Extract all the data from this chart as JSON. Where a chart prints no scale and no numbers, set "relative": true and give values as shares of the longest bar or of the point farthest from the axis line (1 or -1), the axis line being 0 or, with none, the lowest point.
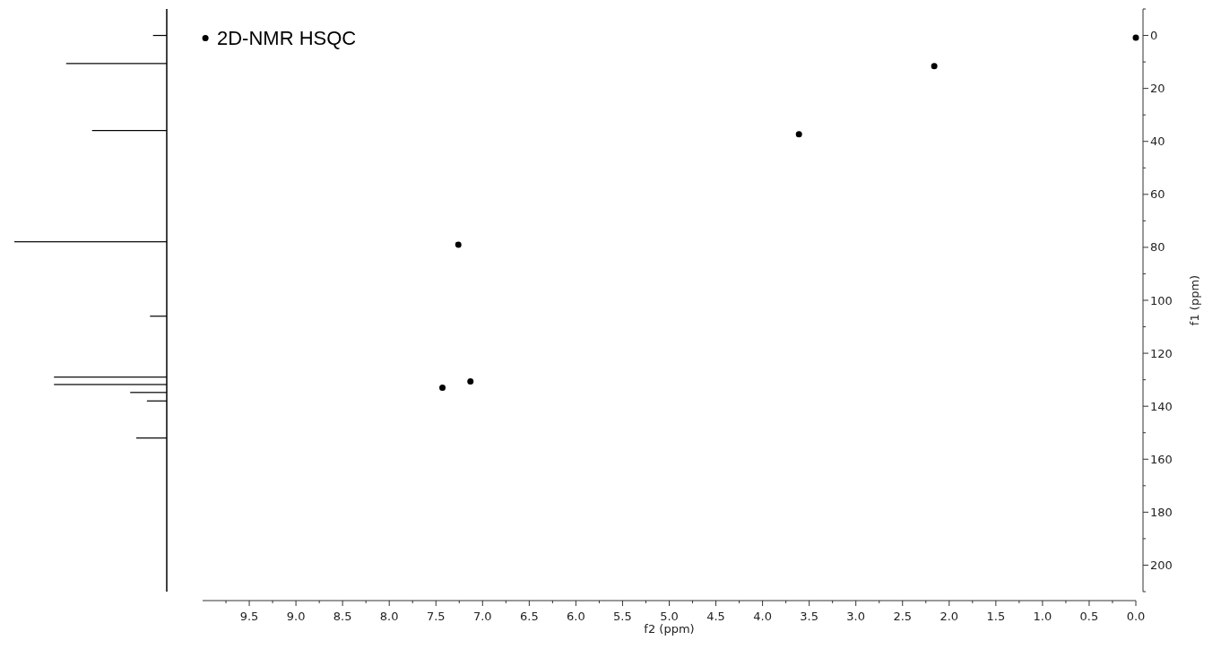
{
  "chart_data": [
    {
      "type": "bar",
      "orientation": "horizontal",
      "relative": true,
      "color": "#000000",
      "tick_labels": false,
      "ylim": [
        210,
        -10
      ],
      "x": [
        0,
        10.6,
        35.9,
        77.9,
        106,
        129,
        131.8,
        134.8,
        138,
        152
      ],
      "values": [
        0.09,
        0.66,
        0.49,
        1,
        0.11,
        0.74,
        0.74,
        0.24,
        0.13,
        0.2
      ]
    },
    {
      "type": "scatter",
      "title": "2D-NMR HSQC",
      "xlabel": "f2 (ppm)",
      "ylabel": "f1 (ppm)",
      "marker": "circle",
      "color": "#000000",
      "x": [
        9.97,
        7.43,
        7.26,
        7.13,
        3.61,
        2.16,
        0.0
      ],
      "values": [
        1,
        133,
        79,
        130.6,
        37.3,
        11.6,
        0.8
      ],
      "xlim": [
        10,
        0
      ],
      "ylim": [
        210,
        -10
      ],
      "xticks": [
        {
          "value": 9.75,
          "label": null
        },
        {
          "value": 9.5,
          "label": "9.5"
        },
        {
          "value": 9.25,
          "label": null
        },
        {
          "value": 9,
          "label": "9.0"
        },
        {
          "value": 8.75,
          "label": null
        },
        {
          "value": 8.5,
          "label": "8.5"
        },
        {
          "value": 8.25,
          "label": null
        },
        {
          "value": 8,
          "label": "8.0"
        },
        {
          "value": 7.75,
          "label": null
        },
        {
          "value": 7.5,
          "label": "7.5"
        },
        {
          "value": 7.25,
          "label": null
        },
        {
          "value": 7,
          "label": "7.0"
        },
        {
          "value": 6.75,
          "label": null
        },
        {
          "value": 6.5,
          "label": "6.5"
        },
        {
          "value": 6.25,
          "label": null
        },
        {
          "value": 6,
          "label": "6.0"
        },
        {
          "value": 5.75,
          "label": null
        },
        {
          "value": 5.5,
          "label": "5.5"
        },
        {
          "value": 5.25,
          "label": null
        },
        {
          "value": 5,
          "label": "5.0"
        },
        {
          "value": 4.75,
          "label": null
        },
        {
          "value": 4.5,
          "label": "4.5"
        },
        {
          "value": 4.25,
          "label": null
        },
        {
          "value": 4,
          "label": "4.0"
        },
        {
          "value": 3.75,
          "label": null
        },
        {
          "value": 3.5,
          "label": "3.5"
        },
        {
          "value": 3.25,
          "label": null
        },
        {
          "value": 3,
          "label": "3.0"
        },
        {
          "value": 2.75,
          "label": null
        },
        {
          "value": 2.5,
          "label": "2.5"
        },
        {
          "value": 2.25,
          "label": null
        },
        {
          "value": 2,
          "label": "2.0"
        },
        {
          "value": 1.75,
          "label": null
        },
        {
          "value": 1.5,
          "label": "1.5"
        },
        {
          "value": 1.25,
          "label": null
        },
        {
          "value": 1,
          "label": "1.0"
        },
        {
          "value": 0.75,
          "label": null
        },
        {
          "value": 0.5,
          "label": "0.5"
        },
        {
          "value": 0.25,
          "label": null
        },
        {
          "value": 0,
          "label": "0.0"
        }
      ],
      "yticks": [
        {
          "value": -10,
          "label": null
        },
        0,
        {
          "value": 10,
          "label": null
        },
        20,
        {
          "value": 30,
          "label": null
        },
        40,
        {
          "value": 50,
          "label": null
        },
        60,
        {
          "value": 70,
          "label": null
        },
        80,
        {
          "value": 90,
          "label": null
        },
        100,
        {
          "value": 110,
          "label": null
        },
        120,
        {
          "value": 130,
          "label": null
        },
        140,
        {
          "value": 150,
          "label": null
        },
        160,
        {
          "value": 170,
          "label": null
        },
        180,
        {
          "value": 190,
          "label": null
        },
        200,
        {
          "value": 210,
          "label": null
        }
      ]
    }
  ]
}
